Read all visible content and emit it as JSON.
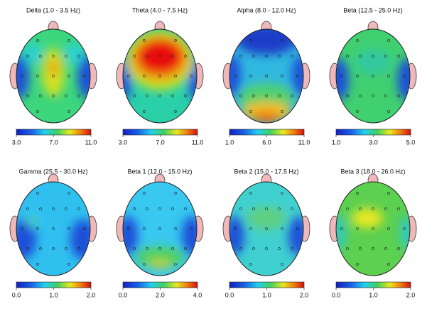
{
  "chart_data": [
    {
      "type": "topomap",
      "title": "Delta (1.0 - 3.5 Hz)",
      "clim": [
        3,
        11
      ],
      "cticks": [
        {
          "value": 3,
          "label": "3.0"
        },
        {
          "value": 7,
          "label": "7.0"
        },
        {
          "value": 11,
          "label": "11.0"
        }
      ]
    },
    {
      "type": "topomap",
      "title": "Theta (4.0 - 7.5 Hz)",
      "clim": [
        3,
        11
      ],
      "cticks": [
        {
          "value": 3,
          "label": "3.0"
        },
        {
          "value": 7,
          "label": "7.0"
        },
        {
          "value": 11,
          "label": "11.0"
        }
      ]
    },
    {
      "type": "topomap",
      "title": "Alpha (8.0 - 12.0 Hz)",
      "clim": [
        1,
        11
      ],
      "cticks": [
        {
          "value": 1,
          "label": "1.0"
        },
        {
          "value": 6,
          "label": "6.0"
        },
        {
          "value": 11,
          "label": "11.0"
        }
      ]
    },
    {
      "type": "topomap",
      "title": "Beta (12.5 - 25.0 Hz)",
      "clim": [
        1,
        5
      ],
      "cticks": [
        {
          "value": 1,
          "label": "1.0"
        },
        {
          "value": 3,
          "label": "3.0"
        },
        {
          "value": 5,
          "label": "5.0"
        }
      ]
    },
    {
      "type": "topomap",
      "title": "Gamma (25.5 - 30.0 Hz)",
      "clim": [
        0,
        2
      ],
      "cticks": [
        {
          "value": 0,
          "label": "0.0"
        },
        {
          "value": 1,
          "label": "1.0"
        },
        {
          "value": 2,
          "label": "2.0"
        }
      ]
    },
    {
      "type": "topomap",
      "title": "Beta 1 (12.0 - 15.0 Hz)",
      "clim": [
        0,
        4
      ],
      "cticks": [
        {
          "value": 0,
          "label": "0.0"
        },
        {
          "value": 2,
          "label": "2.0"
        },
        {
          "value": 4,
          "label": "4.0"
        }
      ]
    },
    {
      "type": "topomap",
      "title": "Beta 2 (15.0 - 17.5 Hz)",
      "clim": [
        0,
        2
      ],
      "cticks": [
        {
          "value": 0,
          "label": "0.0"
        },
        {
          "value": 1,
          "label": "1.0"
        },
        {
          "value": 2,
          "label": "2.0"
        }
      ]
    },
    {
      "type": "topomap",
      "title": "Beta 3 (18.0 - 26.0 Hz)",
      "clim": [
        0,
        2
      ],
      "cticks": [
        {
          "value": 0,
          "label": "0.0"
        },
        {
          "value": 1,
          "label": "1.0"
        },
        {
          "value": 2,
          "label": "2.0"
        }
      ]
    }
  ]
}
